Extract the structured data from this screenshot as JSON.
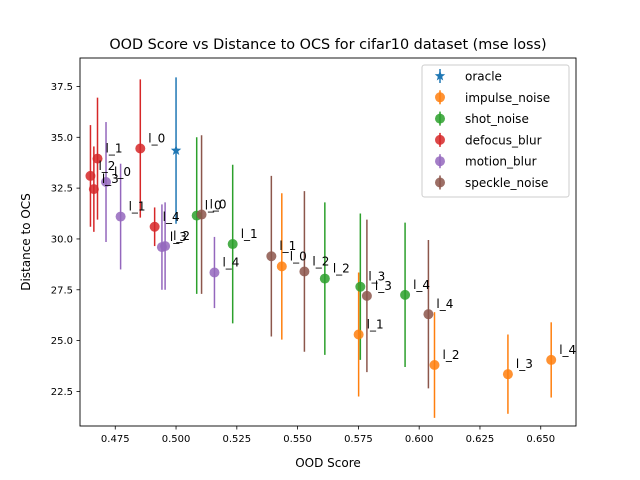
{
  "chart_data": {
    "type": "scatter",
    "title": "OOD Score vs Distance to OCS for cifar10 dataset (mse loss)",
    "xlabel": "OOD Score",
    "ylabel": "Distance to OCS",
    "xlim": [
      0.4605,
      0.6645
    ],
    "ylim": [
      20.8,
      38.9
    ],
    "xticks": [
      "0.475",
      "0.500",
      "0.525",
      "0.550",
      "0.575",
      "0.600",
      "0.625",
      "0.650"
    ],
    "yticks": [
      "22.5",
      "25.0",
      "27.5",
      "30.0",
      "32.5",
      "35.0",
      "37.5"
    ],
    "grid": false,
    "legend_position": "upper-right",
    "series": [
      {
        "name": "oracle",
        "color": "#1f77b4",
        "marker": "star",
        "points": [
          {
            "x": 0.5,
            "y": 34.35,
            "err": 3.6,
            "label": ""
          }
        ]
      },
      {
        "name": "impulse_noise",
        "color": "#ff7f0e",
        "marker": "circle",
        "points": [
          {
            "x": 0.5435,
            "y": 28.65,
            "err": 3.6,
            "label": "l_0"
          },
          {
            "x": 0.5751,
            "y": 25.3,
            "err": 3.05,
            "label": "l_1"
          },
          {
            "x": 0.6063,
            "y": 23.8,
            "err": 2.6,
            "label": "l_2"
          },
          {
            "x": 0.6365,
            "y": 23.35,
            "err": 1.95,
            "label": "l_3"
          },
          {
            "x": 0.6543,
            "y": 24.05,
            "err": 1.85,
            "label": "l_4"
          }
        ]
      },
      {
        "name": "shot_noise",
        "color": "#2ca02c",
        "marker": "circle",
        "points": [
          {
            "x": 0.5085,
            "y": 31.15,
            "err": 3.85,
            "label": "l_0"
          },
          {
            "x": 0.5233,
            "y": 29.75,
            "err": 3.9,
            "label": "l_1"
          },
          {
            "x": 0.5612,
            "y": 28.05,
            "err": 3.75,
            "label": "l_2"
          },
          {
            "x": 0.5758,
            "y": 27.65,
            "err": 3.6,
            "label": "l_3"
          },
          {
            "x": 0.5942,
            "y": 27.25,
            "err": 3.55,
            "label": "l_4"
          }
        ]
      },
      {
        "name": "defocus_blur",
        "color": "#d62728",
        "marker": "circle",
        "points": [
          {
            "x": 0.4853,
            "y": 34.45,
            "err": 3.4,
            "label": "l_0"
          },
          {
            "x": 0.4677,
            "y": 33.95,
            "err": 3.0,
            "label": "l_1"
          },
          {
            "x": 0.4648,
            "y": 33.1,
            "err": 2.5,
            "label": "l_2"
          },
          {
            "x": 0.4662,
            "y": 32.45,
            "err": 2.1,
            "label": "l_3"
          },
          {
            "x": 0.4912,
            "y": 30.6,
            "err": 0.95,
            "label": "l_4"
          }
        ]
      },
      {
        "name": "motion_blur",
        "color": "#9467bd",
        "marker": "circle",
        "points": [
          {
            "x": 0.4712,
            "y": 32.8,
            "err": 2.95,
            "label": "l_0"
          },
          {
            "x": 0.4772,
            "y": 31.1,
            "err": 2.6,
            "label": "l_1"
          },
          {
            "x": 0.4955,
            "y": 29.65,
            "err": 2.15,
            "label": "l_2"
          },
          {
            "x": 0.4942,
            "y": 29.6,
            "err": 2.1,
            "label": "l_3"
          },
          {
            "x": 0.5158,
            "y": 28.35,
            "err": 1.75,
            "label": "l_4"
          }
        ]
      },
      {
        "name": "speckle_noise",
        "color": "#8c564b",
        "marker": "circle",
        "points": [
          {
            "x": 0.5105,
            "y": 31.2,
            "err": 3.9,
            "label": "l_0"
          },
          {
            "x": 0.5392,
            "y": 29.15,
            "err": 3.95,
            "label": "l_1"
          },
          {
            "x": 0.5528,
            "y": 28.4,
            "err": 3.95,
            "label": "l_2"
          },
          {
            "x": 0.5785,
            "y": 27.2,
            "err": 3.75,
            "label": "l_3"
          },
          {
            "x": 0.6038,
            "y": 26.3,
            "err": 3.65,
            "label": "l_4"
          }
        ]
      }
    ]
  }
}
